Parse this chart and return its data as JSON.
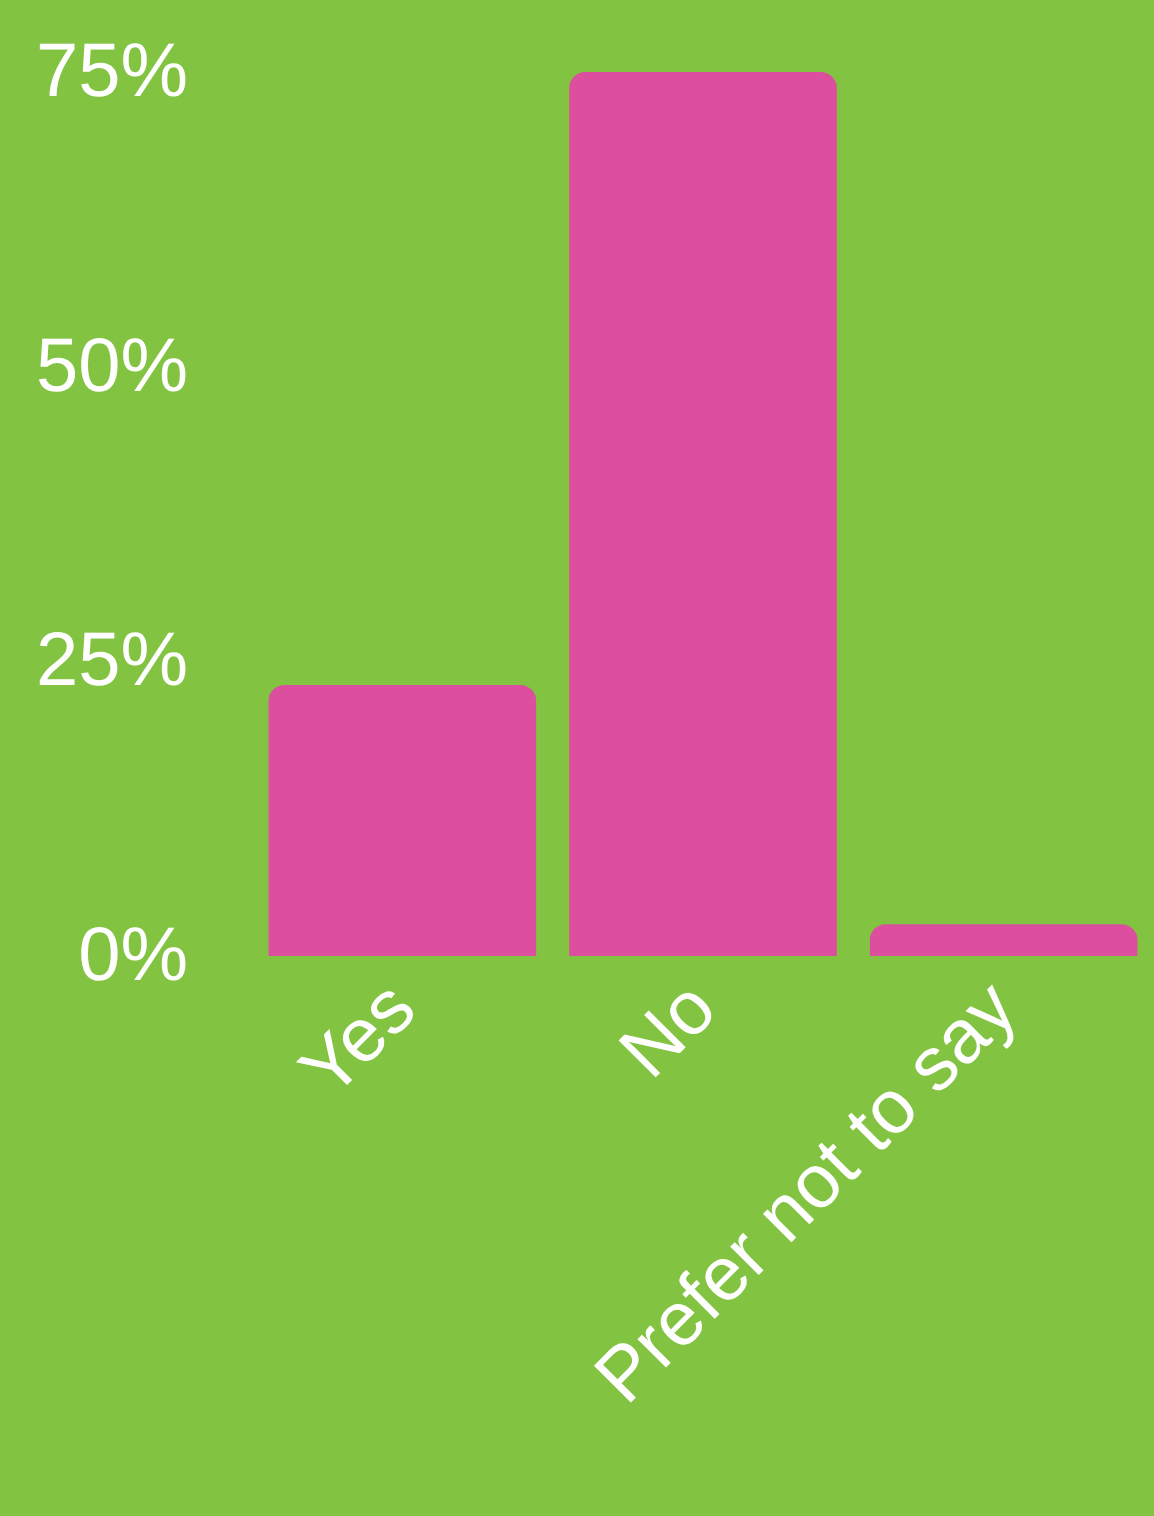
{
  "chart_data": {
    "type": "bar",
    "categories": [
      "Yes",
      "No",
      "Prefer not to say"
    ],
    "values": [
      23,
      75,
      2.7
    ],
    "color": "#db4f9e",
    "ylim": [
      0,
      75
    ],
    "yticks": [
      {
        "value": 0,
        "label": "0%"
      },
      {
        "value": 25,
        "label": "25%"
      },
      {
        "value": 50,
        "label": "50%"
      },
      {
        "value": 75,
        "label": "75%"
      }
    ],
    "grid": false
  }
}
